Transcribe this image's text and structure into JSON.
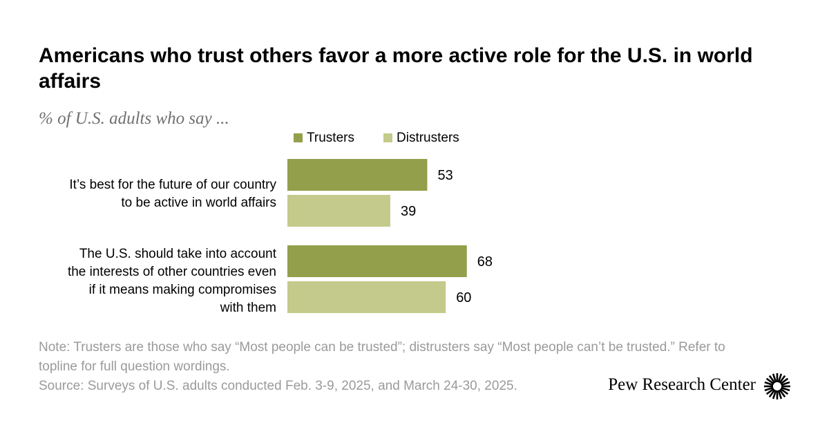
{
  "title": "Americans who trust others favor a more active role for the U.S. in world affairs",
  "subtitle": "% of U.S. adults who say ...",
  "legend": [
    {
      "label": "Trusters",
      "color": "#949f4b"
    },
    {
      "label": "Distrusters",
      "color": "#c4ca8b"
    }
  ],
  "chart_data": {
    "type": "bar",
    "orientation": "horizontal",
    "categories": [
      "It’s best for the future of our country\nto be active in world affairs",
      "The U.S. should take into account\nthe interests of other countries even\nif it means making compromises\nwith them"
    ],
    "series": [
      {
        "name": "Trusters",
        "values": [
          53,
          68
        ],
        "color": "#949f4b"
      },
      {
        "name": "Distrusters",
        "values": [
          39,
          60
        ],
        "color": "#c4ca8b"
      }
    ],
    "xlim": [
      0,
      100
    ],
    "data_labels": true,
    "grid": false,
    "legend_position": "top"
  },
  "note": "Note: Trusters are those who say “Most people can be trusted”; distrusters say “Most people can’t be trusted.” Refer to topline for full question wordings.",
  "source": "Source: Surveys of U.S. adults conducted Feb. 3-9, 2025, and March 24-30, 2025.",
  "brand": "Pew Research Center"
}
